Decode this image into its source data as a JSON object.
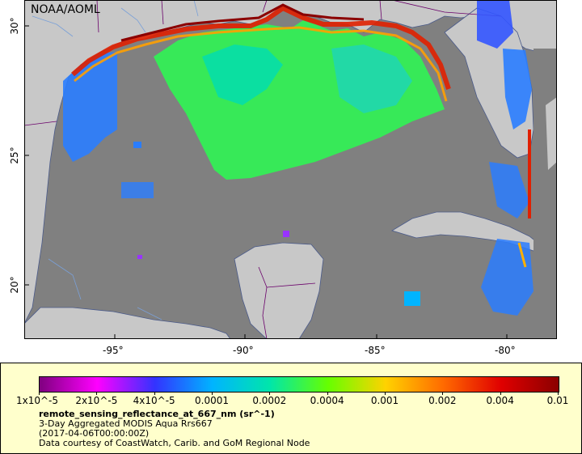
{
  "credit": "NOAA/AOML",
  "map": {
    "x_ticks": [
      "-95°",
      "-90°",
      "-85°",
      "-80°"
    ],
    "y_ticks": [
      "30°",
      "25°",
      "20°"
    ],
    "colors": {
      "land": "#c8c8c8",
      "nodata": "#808080",
      "coast": "#4a5a8a",
      "border": "#6a006a",
      "river": "#7aa0d8"
    }
  },
  "legend": {
    "tick_labels": [
      "1x10^-5",
      "2x10^-5",
      "4x10^-5",
      "0.0001",
      "0.0002",
      "0.0004",
      "0.001",
      "0.002",
      "0.004",
      "0.01"
    ],
    "variable": "remote_sensing_reflectance_at_667_nm (sr^-1)",
    "dataset": "3-Day Aggregated MODIS Aqua Rrs667",
    "time": "(2017-04-06T00:00:00Z)",
    "courtesy": "Data courtesy of CoastWatch, Carib. and GoM Regional Node",
    "colormap": [
      "#7f007f",
      "#ff00ff",
      "#3333ff",
      "#00b4ff",
      "#00e6aa",
      "#66ff00",
      "#ffd200",
      "#ff6a00",
      "#e00000",
      "#8b0000"
    ]
  }
}
